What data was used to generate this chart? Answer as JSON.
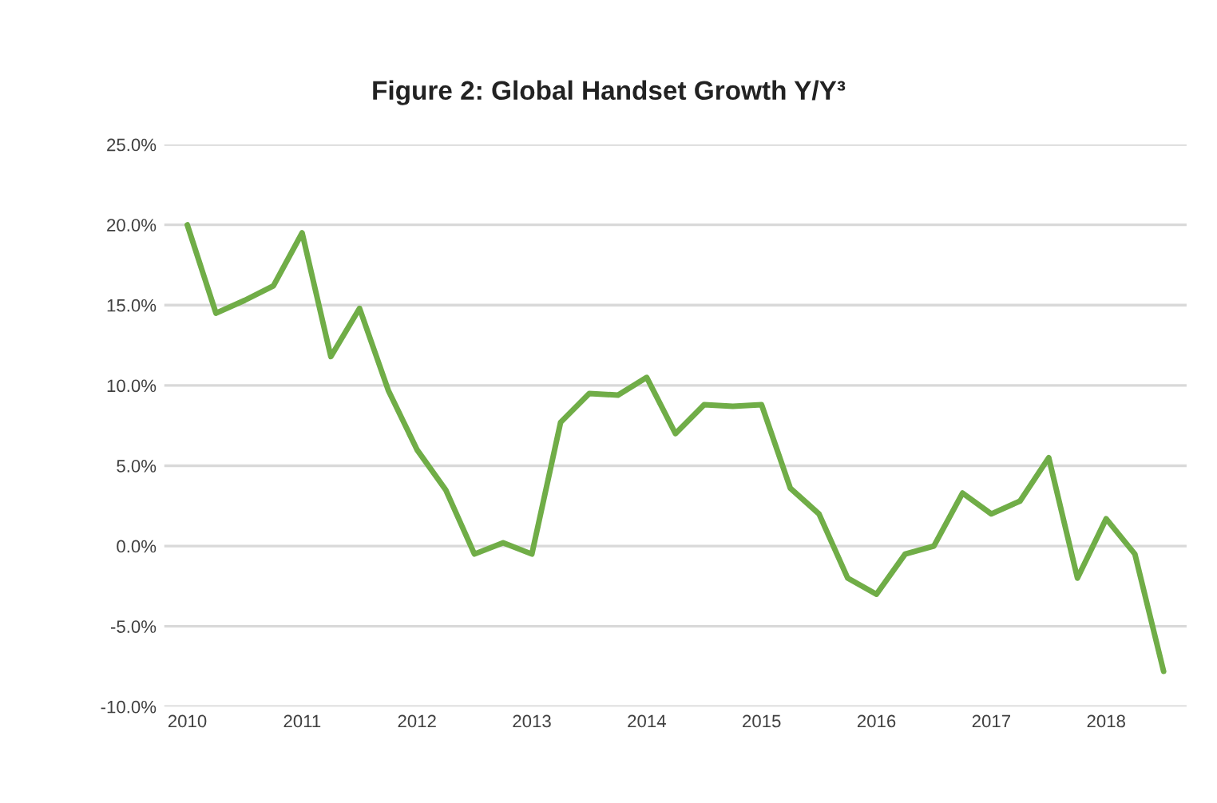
{
  "chart_data": {
    "type": "line",
    "title": "Figure 2: Global Handset Growth Y/Y³",
    "categories": [
      "2010",
      null,
      null,
      null,
      "2011",
      null,
      null,
      null,
      "2012",
      null,
      null,
      null,
      "2013",
      null,
      null,
      null,
      "2014",
      null,
      null,
      null,
      "2015",
      null,
      null,
      null,
      "2016",
      null,
      null,
      null,
      "2017",
      null,
      null,
      null,
      "2018",
      null,
      null
    ],
    "series": [
      {
        "color": "#70ad47",
        "values": [
          20.0,
          14.5,
          15.3,
          16.2,
          19.5,
          11.8,
          14.8,
          9.7,
          6.0,
          3.5,
          -0.5,
          0.2,
          -0.5,
          7.7,
          9.5,
          9.4,
          10.5,
          7.0,
          8.8,
          8.7,
          8.8,
          3.6,
          2.0,
          -2.0,
          -3.0,
          -0.5,
          0.0,
          3.3,
          2.0,
          2.8,
          5.5,
          -2.0,
          1.7,
          -0.5,
          -7.8
        ]
      }
    ],
    "ylim": [
      -10,
      25
    ],
    "yticks": [
      {
        "value": -10,
        "label": "-10.0%"
      },
      {
        "value": -5,
        "label": "-5.0%"
      },
      {
        "value": 0,
        "label": "0.0%"
      },
      {
        "value": 5,
        "label": "5.0%"
      },
      {
        "value": 10,
        "label": "10.0%"
      },
      {
        "value": 15,
        "label": "15.0%"
      },
      {
        "value": 20,
        "label": "20.0%"
      },
      {
        "value": 25,
        "label": "25.0%"
      }
    ],
    "grid": "y",
    "legend": false,
    "line_style": "solid",
    "marker": "none"
  }
}
